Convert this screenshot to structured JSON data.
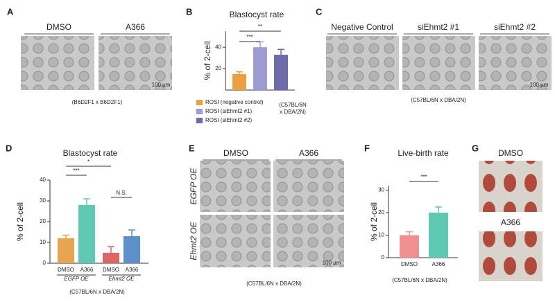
{
  "panel_letters": [
    "A",
    "B",
    "C",
    "D",
    "E",
    "F",
    "G"
  ],
  "panel_a": {
    "labels": [
      "DMSO",
      "A366"
    ],
    "scale": "100 µm",
    "note": "(B6D2F1 x B6D2F1)"
  },
  "panel_c": {
    "labels": [
      "Negative Control",
      "siEhmt2 #1",
      "siEhmt2 #2"
    ],
    "scale": "100 µm",
    "note": "(C57BL/6N x DBA/2N)"
  },
  "panel_e": {
    "labels": [
      "DMSO",
      "A366"
    ],
    "rows": [
      "EGFP OE",
      "Ehmt2 OE"
    ],
    "scale": "100 µm",
    "note": "(C57BL/6N x DBA/2N)"
  },
  "panel_g": {
    "labels": [
      "DMSO",
      "A366"
    ]
  },
  "chart_data": [
    {
      "type": "bar",
      "title": "Blastocyst rate",
      "ylabel": "% of 2-cell",
      "series": [
        {
          "name": "ROSI (negative control)",
          "color": "#e8a040"
        },
        {
          "name": "ROSI (siEhmt2 #1)",
          "color": "#9c9cd2"
        },
        {
          "name": "ROSI (siEhmt2 #2)",
          "color": "#6c6caa"
        }
      ],
      "values": [
        15,
        40,
        33
      ],
      "errors": [
        2,
        5,
        5
      ],
      "ylim": [
        0,
        55
      ],
      "yticks": [
        20,
        40
      ],
      "annotations": [
        "***",
        "**"
      ],
      "note": [
        "(C57BL/6N",
        "x DBA/2N)"
      ]
    },
    {
      "type": "bar",
      "title": "Blastocyst rate",
      "ylabel": "% of 2-cell",
      "categories": [
        "DMSO",
        "A366",
        "DMSO",
        "A366"
      ],
      "groups": [
        "EGFP OE",
        "Ehmt2 OE"
      ],
      "colors": [
        "#e8a550",
        "#5fc8b0",
        "#e06464",
        "#5b90c8"
      ],
      "values": [
        12,
        28,
        5,
        13
      ],
      "errors": [
        1.5,
        3,
        3,
        3
      ],
      "ylim": [
        0,
        40
      ],
      "yticks": [
        0,
        10,
        20,
        30,
        40
      ],
      "annotations": [
        "***",
        "*",
        "N.S."
      ],
      "note": [
        "(C57BL/6N x DBA/2N)"
      ]
    },
    {
      "type": "bar",
      "title": "Live-birth rate",
      "ylabel": "% of 2-cell",
      "categories": [
        "DMSO",
        "A366"
      ],
      "colors": [
        "#f09090",
        "#5fc8b0"
      ],
      "values": [
        10,
        20
      ],
      "errors": [
        1.5,
        2.5
      ],
      "ylim": [
        0,
        32
      ],
      "yticks": [
        0,
        10,
        20,
        30
      ],
      "annotations": [
        "***"
      ],
      "note": [
        "(C57BL/6N x DBA/2N)"
      ]
    }
  ]
}
